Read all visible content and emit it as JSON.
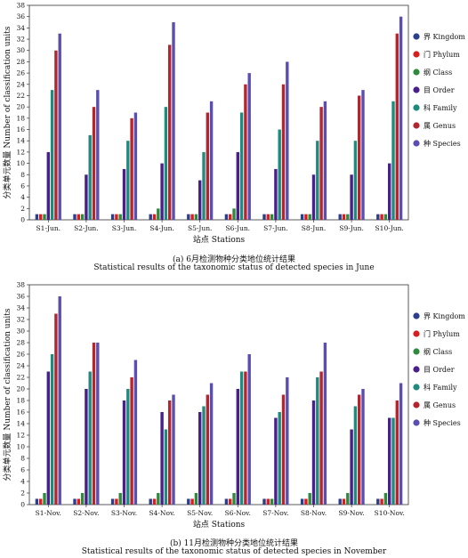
{
  "chart_data": [
    {
      "type": "bar",
      "panel": "june",
      "ylabel_cn": "分类单元数量",
      "ylabel_en": "Number of classification units",
      "xlabel": "站点 Stations",
      "caption_cn": "(a) 6月检测物种分类地位统计结果",
      "caption_en": "Statistical results of the taxonomic status of detected species in June",
      "ylim": [
        0,
        38
      ],
      "yticks": [
        0,
        2,
        4,
        6,
        8,
        10,
        12,
        14,
        16,
        18,
        20,
        22,
        24,
        26,
        28,
        30,
        32,
        34,
        36,
        38
      ],
      "legend_position": "right",
      "categories": [
        "S1-Jun.",
        "S2-Jun.",
        "S3-Jun.",
        "S4-Jun.",
        "S5-Jun.",
        "S6-Jun.",
        "S7-Jun.",
        "S8-Jun.",
        "S9-Jun.",
        "S10-Jun."
      ],
      "series": [
        {
          "name": "界 Kingdom",
          "color": "#2b3f8c",
          "values": [
            1,
            1,
            1,
            1,
            1,
            1,
            1,
            1,
            1,
            1
          ]
        },
        {
          "name": "门 Phylum",
          "color": "#d81e1e",
          "values": [
            1,
            1,
            1,
            1,
            1,
            1,
            1,
            1,
            1,
            1
          ]
        },
        {
          "name": "纲 Class",
          "color": "#2e8b3e",
          "values": [
            1,
            1,
            1,
            2,
            1,
            2,
            1,
            1,
            1,
            1
          ]
        },
        {
          "name": "目 Order",
          "color": "#4b1f8a",
          "values": [
            12,
            8,
            9,
            10,
            7,
            12,
            9,
            8,
            8,
            10
          ]
        },
        {
          "name": "科 Family",
          "color": "#1f8a7e",
          "values": [
            23,
            15,
            14,
            20,
            12,
            19,
            16,
            14,
            14,
            21
          ]
        },
        {
          "name": "属 Genus",
          "color": "#b3262e",
          "values": [
            30,
            20,
            18,
            31,
            19,
            24,
            24,
            20,
            22,
            33
          ]
        },
        {
          "name": "种 Species",
          "color": "#5a4fb0",
          "values": [
            33,
            23,
            19,
            35,
            21,
            26,
            28,
            21,
            23,
            36
          ]
        }
      ]
    },
    {
      "type": "bar",
      "panel": "november",
      "ylabel_cn": "分类单元数量",
      "ylabel_en": "Number of classification units",
      "xlabel": "站点 Stations",
      "caption_cn": "(b) 11月检测物种分类地位统计结果",
      "caption_en": "Statistical results of the taxonomic status of detected species in November",
      "ylim": [
        0,
        38
      ],
      "yticks": [
        0,
        2,
        4,
        6,
        8,
        10,
        12,
        14,
        16,
        18,
        20,
        22,
        24,
        26,
        28,
        30,
        32,
        34,
        36,
        38
      ],
      "legend_position": "right",
      "categories": [
        "S1-Nov.",
        "S2-Nov.",
        "S3-Nov.",
        "S4-Nov.",
        "S5-Nov.",
        "S6-Nov.",
        "S7-Nov.",
        "S8-Nov.",
        "S9-Nov.",
        "S10-Nov."
      ],
      "series": [
        {
          "name": "界 Kingdom",
          "color": "#2b3f8c",
          "values": [
            1,
            1,
            1,
            1,
            1,
            1,
            1,
            1,
            1,
            1
          ]
        },
        {
          "name": "门 Phylum",
          "color": "#d81e1e",
          "values": [
            1,
            1,
            1,
            1,
            1,
            1,
            1,
            1,
            1,
            1
          ]
        },
        {
          "name": "纲 Class",
          "color": "#2e8b3e",
          "values": [
            2,
            2,
            2,
            2,
            2,
            2,
            1,
            2,
            2,
            2
          ]
        },
        {
          "name": "目 Order",
          "color": "#4b1f8a",
          "values": [
            23,
            20,
            18,
            16,
            16,
            20,
            15,
            18,
            13,
            15
          ]
        },
        {
          "name": "科 Family",
          "color": "#1f8a7e",
          "values": [
            26,
            23,
            20,
            13,
            17,
            23,
            16,
            22,
            17,
            15
          ]
        },
        {
          "name": "属 Genus",
          "color": "#b3262e",
          "values": [
            33,
            28,
            22,
            18,
            19,
            23,
            19,
            23,
            19,
            18
          ]
        },
        {
          "name": "种 Species",
          "color": "#5a4fb0",
          "values": [
            36,
            28,
            25,
            19,
            21,
            26,
            22,
            28,
            20,
            21
          ]
        }
      ]
    }
  ]
}
